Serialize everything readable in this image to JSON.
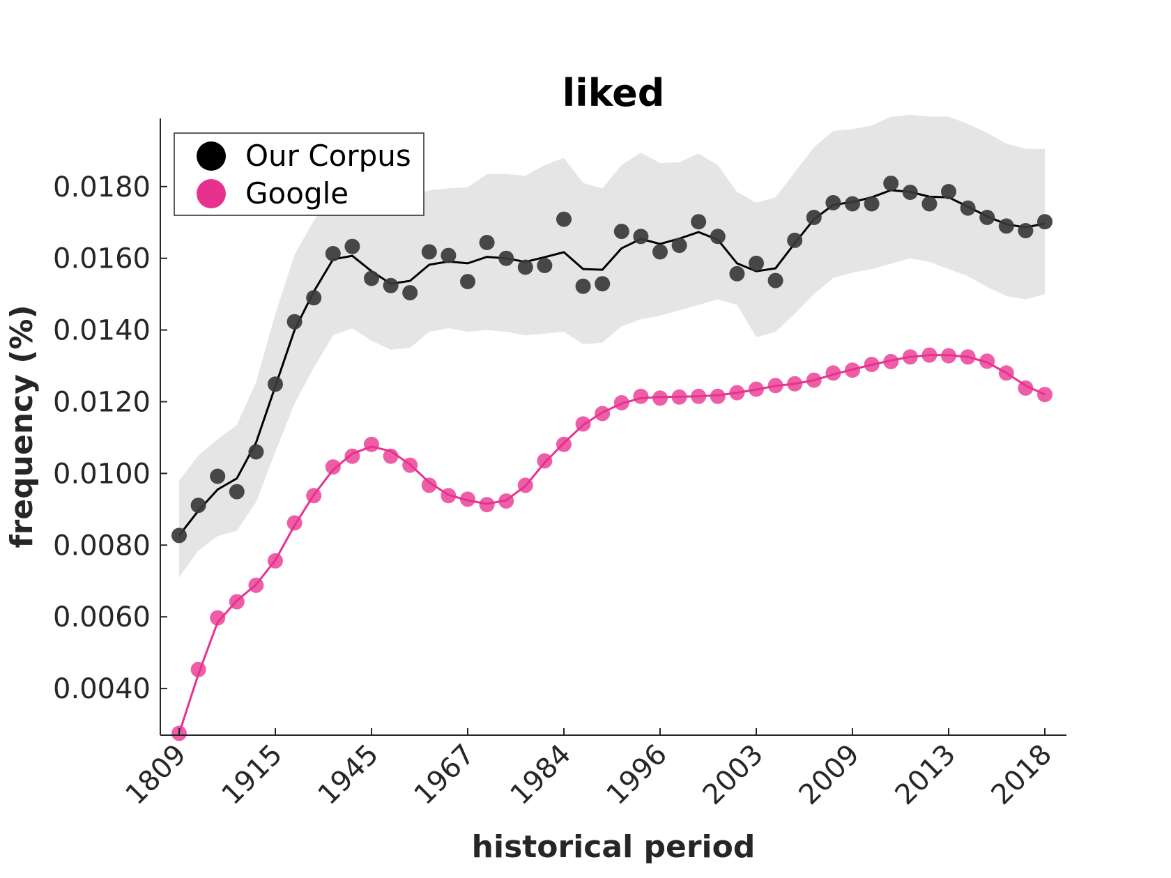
{
  "chart_data": {
    "type": "line",
    "title": "liked",
    "xlabel": "historical period",
    "ylabel": "frequency (%)",
    "x_tick_labels": [
      "1809",
      "1915",
      "1945",
      "1967",
      "1984",
      "1996",
      "2003",
      "2009",
      "2013",
      "2018"
    ],
    "y_ticks": [
      "0.0040",
      "0.0060",
      "0.0080",
      "0.0100",
      "0.0120",
      "0.0140",
      "0.0160",
      "0.0180"
    ],
    "ylim": [
      0.0027,
      0.0199
    ],
    "legend": {
      "position": "top-left",
      "entries": [
        "Our Corpus",
        "Google"
      ]
    },
    "grid": false,
    "colors": {
      "our_corpus": "#3a3a3a",
      "our_corpus_line": "#000000",
      "band": "#e5e5e5",
      "google": "#e8318e"
    },
    "series": [
      {
        "name": "Our Corpus",
        "points": [
          0.00827,
          0.00911,
          0.00992,
          0.00949,
          0.0106,
          0.01249,
          0.01423,
          0.0149,
          0.01613,
          0.01633,
          0.01544,
          0.01524,
          0.01504,
          0.01618,
          0.01608,
          0.01535,
          0.01644,
          0.016,
          0.01575,
          0.0158,
          0.01709,
          0.01522,
          0.01529,
          0.01675,
          0.01661,
          0.01618,
          0.01636,
          0.01702,
          0.01661,
          0.01557,
          0.01586,
          0.01538,
          0.0165,
          0.01714,
          0.01755,
          0.01752,
          0.01752,
          0.01809,
          0.01784,
          0.01752,
          0.01786,
          0.0174,
          0.01714,
          0.0169,
          0.01677,
          0.01702
        ],
        "trend": [
          0.00827,
          0.00896,
          0.00955,
          0.00986,
          0.01086,
          0.01243,
          0.014,
          0.01507,
          0.01597,
          0.01607,
          0.01564,
          0.01529,
          0.01537,
          0.01582,
          0.01591,
          0.01586,
          0.01604,
          0.016,
          0.0159,
          0.01603,
          0.01617,
          0.0157,
          0.01568,
          0.01628,
          0.01654,
          0.0164,
          0.01655,
          0.01673,
          0.01652,
          0.01586,
          0.01564,
          0.01572,
          0.01642,
          0.01709,
          0.01749,
          0.01757,
          0.0177,
          0.0179,
          0.01785,
          0.01772,
          0.0177,
          0.01744,
          0.01717,
          0.01695,
          0.01686,
          0.01697
        ],
        "band_upper": [
          0.0098,
          0.0105,
          0.01095,
          0.01135,
          0.01255,
          0.01445,
          0.0161,
          0.01705,
          0.01785,
          0.0178,
          0.01755,
          0.0175,
          0.0177,
          0.0179,
          0.01795,
          0.01798,
          0.01835,
          0.01835,
          0.0183,
          0.0186,
          0.0188,
          0.0181,
          0.01795,
          0.0186,
          0.01895,
          0.01865,
          0.01868,
          0.01892,
          0.0186,
          0.01785,
          0.01755,
          0.0177,
          0.0184,
          0.0191,
          0.01955,
          0.0196,
          0.0197,
          0.01995,
          0.02,
          0.01995,
          0.01995,
          0.01975,
          0.0195,
          0.0192,
          0.01905,
          0.01905
        ],
        "band_lower": [
          0.0071,
          0.00785,
          0.00825,
          0.0084,
          0.0092,
          0.0106,
          0.01195,
          0.01295,
          0.01385,
          0.01405,
          0.0137,
          0.01345,
          0.0135,
          0.01395,
          0.01405,
          0.01395,
          0.014,
          0.01395,
          0.01385,
          0.0139,
          0.01395,
          0.0136,
          0.01365,
          0.0141,
          0.0143,
          0.0144,
          0.01455,
          0.0147,
          0.01485,
          0.0147,
          0.0138,
          0.01395,
          0.01445,
          0.015,
          0.01545,
          0.0156,
          0.0157,
          0.01585,
          0.016,
          0.0159,
          0.0157,
          0.0155,
          0.0152,
          0.01495,
          0.01485,
          0.015
        ]
      },
      {
        "name": "Google",
        "points": [
          0.00275,
          0.00453,
          0.00597,
          0.00642,
          0.00688,
          0.00756,
          0.00862,
          0.00938,
          0.01018,
          0.01048,
          0.01081,
          0.01048,
          0.01023,
          0.00967,
          0.00938,
          0.00928,
          0.00913,
          0.00923,
          0.00967,
          0.01035,
          0.01081,
          0.01138,
          0.01167,
          0.01197,
          0.01215,
          0.0121,
          0.01213,
          0.01215,
          0.01215,
          0.01225,
          0.01235,
          0.01245,
          0.0125,
          0.0126,
          0.0128,
          0.01288,
          0.01304,
          0.01312,
          0.01325,
          0.0133,
          0.01328,
          0.01325,
          0.01313,
          0.0128,
          0.01238,
          0.0122
        ],
        "trend": [
          0.00275,
          0.0044,
          0.00585,
          0.00645,
          0.0069,
          0.00758,
          0.00855,
          0.0094,
          0.0101,
          0.01055,
          0.01075,
          0.01062,
          0.01025,
          0.00975,
          0.0094,
          0.00925,
          0.00915,
          0.00925,
          0.00965,
          0.0103,
          0.01085,
          0.01135,
          0.0117,
          0.01195,
          0.0121,
          0.01213,
          0.01214,
          0.01215,
          0.01218,
          0.01225,
          0.01234,
          0.01244,
          0.0125,
          0.0126,
          0.01276,
          0.0129,
          0.01303,
          0.01315,
          0.01325,
          0.0133,
          0.0133,
          0.01325,
          0.0131,
          0.0128,
          0.01245,
          0.0122
        ]
      }
    ]
  }
}
